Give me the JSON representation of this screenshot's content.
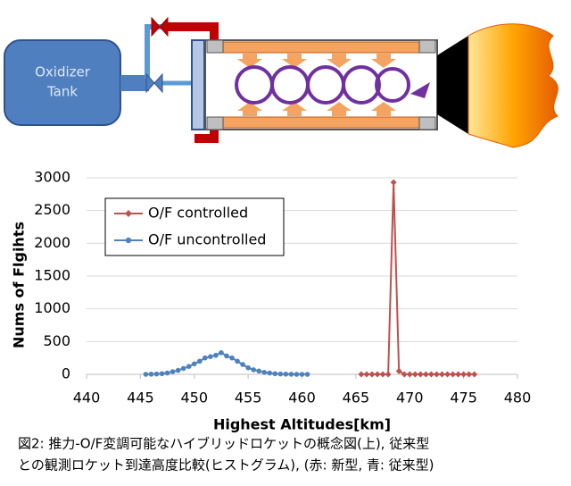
{
  "diagram": {
    "tank_label": [
      "Oxidizer",
      "Tank"
    ]
  },
  "chart_data": {
    "type": "line",
    "xlabel": "Highest Altitudes[km]",
    "ylabel": "Nums of Flgihts",
    "xlim": [
      440,
      480
    ],
    "xticks": [
      440,
      445,
      450,
      455,
      460,
      465,
      470,
      475,
      480
    ],
    "ylim": [
      0,
      3000
    ],
    "yticks": [
      0,
      500,
      1000,
      1500,
      2000,
      2500,
      3000
    ],
    "grid": true,
    "legend": "upper left",
    "series": [
      {
        "name": "O/F controlled",
        "color": "#c0504d",
        "marker": "diamond",
        "x": [
          465.5,
          466,
          466.5,
          467,
          467.5,
          468,
          468.5,
          469,
          469.5,
          470,
          470.5,
          471,
          471.5,
          472,
          472.5,
          473,
          473.5,
          474,
          474.5,
          475,
          475.5,
          476
        ],
        "values": [
          0,
          0,
          0,
          0,
          0,
          0,
          2930,
          50,
          0,
          0,
          0,
          0,
          0,
          0,
          0,
          0,
          0,
          0,
          0,
          0,
          0,
          0
        ]
      },
      {
        "name": "O/F uncontrolled",
        "color": "#4f81bd",
        "marker": "circle",
        "x": [
          445.5,
          446,
          446.5,
          447,
          447.5,
          448,
          448.5,
          449,
          449.5,
          450,
          450.5,
          451,
          451.5,
          452,
          452.5,
          453,
          453.5,
          454,
          454.5,
          455,
          455.5,
          456,
          456.5,
          457,
          457.5,
          458,
          458.5,
          459,
          459.5,
          460,
          460.5
        ],
        "values": [
          0,
          2,
          5,
          10,
          20,
          40,
          60,
          90,
          120,
          160,
          200,
          250,
          270,
          290,
          330,
          280,
          250,
          200,
          150,
          100,
          70,
          50,
          30,
          20,
          10,
          5,
          3,
          1,
          0,
          0,
          0
        ]
      }
    ]
  },
  "caption": [
    "図2: 推力-O/F変調可能なハイブリッドロケットの概念図(上), 従来型",
    "との観測ロケット到達高度比較(ヒストグラム), (赤: 新型, 青: 従来型)"
  ]
}
